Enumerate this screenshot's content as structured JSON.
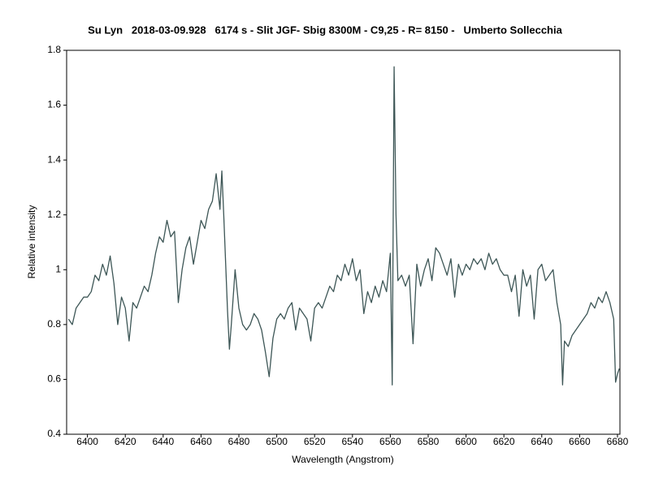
{
  "chart_data": {
    "type": "line",
    "title": "Su Lyn   2018-03-09.928   6174 s - Slit JGF- Sbig 8300M - C9,25 - R= 8150 -   Umberto Sollecchia",
    "x_label": "Wavelength (Angstrom)",
    "y_label": "Relative intensity",
    "xlim": [
      6389,
      6681.3
    ],
    "ylim": [
      0.4,
      1.8
    ],
    "xticks": [
      6400,
      6420,
      6440,
      6460,
      6480,
      6500,
      6520,
      6540,
      6560,
      6580,
      6600,
      6620,
      6640,
      6660,
      6680
    ],
    "yticks": [
      0.4,
      0.6,
      0.8,
      1,
      1.2,
      1.4,
      1.6,
      1.8
    ],
    "grid": false,
    "series": [
      {
        "color": "#3d5656",
        "x": [
          6390,
          6392,
          6394,
          6396,
          6398,
          6400,
          6402,
          6404,
          6406,
          6408,
          6410,
          6412,
          6414,
          6416,
          6418,
          6420,
          6422,
          6424,
          6426,
          6428,
          6430,
          6432,
          6434,
          6436,
          6438,
          6440,
          6442,
          6444,
          6446,
          6448,
          6450,
          6452,
          6454,
          6456,
          6458,
          6460,
          6462,
          6464,
          6466,
          6468,
          6470,
          6471,
          6472,
          6474,
          6475,
          6476,
          6478,
          6480,
          6482,
          6484,
          6486,
          6488,
          6490,
          6492,
          6494,
          6496,
          6498,
          6500,
          6502,
          6504,
          6506,
          6508,
          6510,
          6512,
          6514,
          6516,
          6518,
          6520,
          6522,
          6524,
          6526,
          6528,
          6530,
          6532,
          6534,
          6536,
          6538,
          6540,
          6542,
          6544,
          6546,
          6548,
          6550,
          6552,
          6554,
          6556,
          6558,
          6560,
          6561,
          6562,
          6563,
          6564,
          6566,
          6568,
          6570,
          6572,
          6574,
          6576,
          6578,
          6580,
          6582,
          6584,
          6586,
          6588,
          6590,
          6592,
          6594,
          6596,
          6598,
          6600,
          6602,
          6604,
          6606,
          6608,
          6610,
          6612,
          6614,
          6616,
          6618,
          6620,
          6622,
          6624,
          6626,
          6628,
          6630,
          6632,
          6634,
          6636,
          6638,
          6640,
          6642,
          6644,
          6646,
          6648,
          6650,
          6651,
          6652,
          6654,
          6656,
          6658,
          6660,
          6662,
          6664,
          6666,
          6668,
          6670,
          6672,
          6674,
          6676,
          6678,
          6679,
          6680,
          6681
        ],
        "values": [
          0.82,
          0.8,
          0.86,
          0.88,
          0.9,
          0.9,
          0.92,
          0.98,
          0.96,
          1.02,
          0.98,
          1.05,
          0.95,
          0.8,
          0.9,
          0.86,
          0.74,
          0.88,
          0.86,
          0.9,
          0.94,
          0.92,
          0.98,
          1.06,
          1.12,
          1.1,
          1.18,
          1.12,
          1.14,
          0.88,
          1.0,
          1.08,
          1.12,
          1.02,
          1.1,
          1.18,
          1.15,
          1.22,
          1.25,
          1.35,
          1.22,
          1.36,
          1.2,
          0.85,
          0.71,
          0.8,
          1.0,
          0.86,
          0.8,
          0.78,
          0.8,
          0.84,
          0.82,
          0.78,
          0.7,
          0.61,
          0.75,
          0.82,
          0.84,
          0.82,
          0.86,
          0.88,
          0.78,
          0.86,
          0.84,
          0.82,
          0.74,
          0.86,
          0.88,
          0.86,
          0.9,
          0.94,
          0.92,
          0.98,
          0.96,
          1.02,
          0.98,
          1.04,
          0.96,
          1.0,
          0.84,
          0.92,
          0.88,
          0.94,
          0.9,
          0.96,
          0.92,
          1.06,
          0.58,
          1.74,
          1.2,
          0.96,
          0.98,
          0.94,
          0.98,
          0.73,
          1.02,
          0.94,
          1.0,
          1.04,
          0.96,
          1.08,
          1.06,
          1.02,
          0.98,
          1.04,
          0.9,
          1.02,
          0.98,
          1.02,
          1.0,
          1.04,
          1.02,
          1.04,
          1.0,
          1.06,
          1.02,
          1.04,
          1.0,
          0.98,
          0.98,
          0.92,
          0.98,
          0.83,
          1.0,
          0.94,
          0.98,
          0.82,
          1.0,
          1.02,
          0.96,
          0.98,
          1.0,
          0.88,
          0.8,
          0.58,
          0.74,
          0.72,
          0.76,
          0.78,
          0.8,
          0.82,
          0.84,
          0.88,
          0.86,
          0.9,
          0.88,
          0.92,
          0.88,
          0.82,
          0.59,
          0.62,
          0.64
        ]
      }
    ]
  }
}
